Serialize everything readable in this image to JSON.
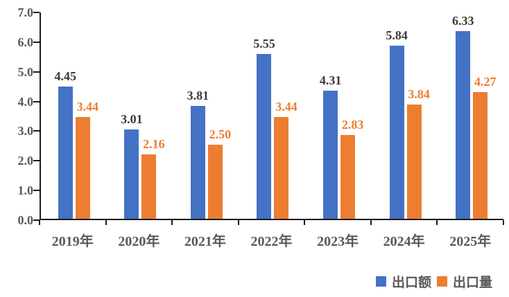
{
  "chart_data": {
    "type": "bar",
    "title": "",
    "xlabel": "",
    "ylabel": "",
    "categories": [
      "2019年",
      "2020年",
      "2021年",
      "2022年",
      "2023年",
      "2024年",
      "2025年"
    ],
    "series": [
      {
        "name": "出口额",
        "color": "#4472C4",
        "label_color": "#3B3B3B",
        "values": [
          4.45,
          3.01,
          3.81,
          5.55,
          4.31,
          5.84,
          6.33
        ],
        "labels": [
          "4.45",
          "3.01",
          "3.81",
          "5.55",
          "4.31",
          "5.84",
          "6.33"
        ]
      },
      {
        "name": "出口量",
        "color": "#ED7D31",
        "label_color": "#ED7D31",
        "values": [
          3.44,
          2.16,
          2.5,
          3.44,
          2.83,
          3.84,
          4.27
        ],
        "labels": [
          "3.44",
          "2.16",
          "2.50",
          "3.44",
          "2.83",
          "3.84",
          "4.27"
        ]
      }
    ],
    "ylim": [
      0,
      7
    ],
    "ytick_step": 1.0,
    "ytick_labels": [
      "0.0",
      "1.0",
      "2.0",
      "3.0",
      "4.0",
      "5.0",
      "6.0",
      "7.0"
    ],
    "grid": false,
    "legend_position": "bottom-right",
    "axis_color": "#1a1a1a",
    "tick_label_color": "#595959",
    "background_color": "#ffffff"
  }
}
